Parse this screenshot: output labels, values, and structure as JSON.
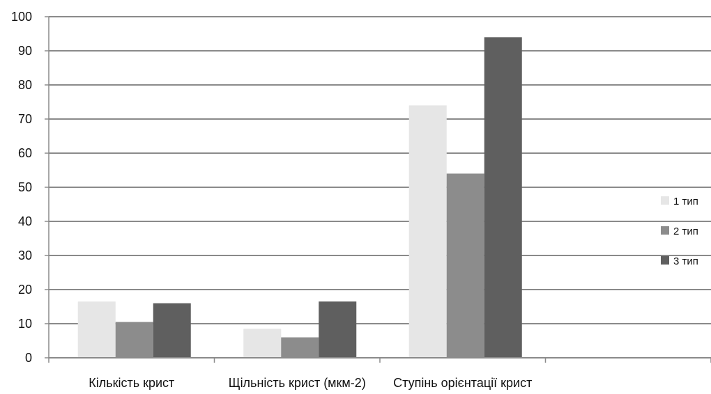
{
  "chart_data": {
    "type": "bar",
    "categories": [
      "Кількість крист",
      "Щільність крист (мкм-2)",
      "Ступінь орієнтації крист"
    ],
    "series": [
      {
        "name": "1 тип",
        "color": "#e6e6e6",
        "values": [
          16.5,
          8.5,
          74
        ]
      },
      {
        "name": "2 тип",
        "color": "#8c8c8c",
        "values": [
          10.5,
          6,
          54
        ]
      },
      {
        "name": "3 тип",
        "color": "#5f5f5f",
        "values": [
          16,
          16.5,
          94
        ]
      }
    ],
    "ylim": [
      0,
      100
    ],
    "yticks": [
      0,
      10,
      20,
      30,
      40,
      50,
      60,
      70,
      80,
      90,
      100
    ],
    "grid": true,
    "legend_position": "right"
  }
}
